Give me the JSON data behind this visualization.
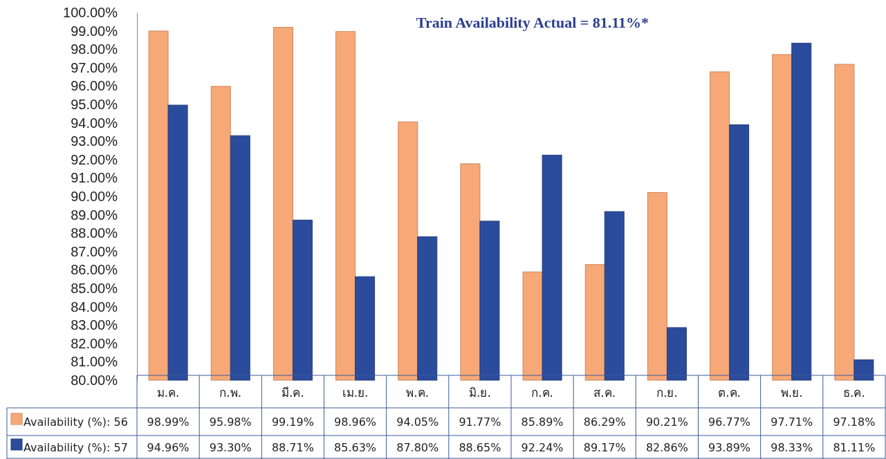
{
  "chart_data": {
    "type": "bar",
    "title": "Train Availability Actual = 81.11%*",
    "categories": [
      "ม.ค.",
      "ก.พ.",
      "มี.ค.",
      "เม.ย.",
      "พ.ค.",
      "มิ.ย.",
      "ก.ค.",
      "ส.ค.",
      "ก.ย.",
      "ต.ค.",
      "พ.ย.",
      "ธ.ค."
    ],
    "series": [
      {
        "name": "Availability (%): 56",
        "color": "#f7a877",
        "values": [
          98.99,
          95.98,
          99.19,
          98.96,
          94.05,
          91.77,
          85.89,
          86.29,
          90.21,
          96.77,
          97.71,
          97.18
        ],
        "value_labels": [
          "98.99%",
          "95.98%",
          "99.19%",
          "98.96%",
          "94.05%",
          "91.77%",
          "85.89%",
          "86.29%",
          "90.21%",
          "96.77%",
          "97.71%",
          "97.18%"
        ]
      },
      {
        "name": "Availability (%): 57",
        "color": "#2b4c9c",
        "values": [
          94.96,
          93.3,
          88.71,
          85.63,
          87.8,
          88.65,
          92.24,
          89.17,
          82.86,
          93.89,
          98.33,
          81.11
        ],
        "value_labels": [
          "94.96%",
          "93.30%",
          "88.71%",
          "85.63%",
          "87.80%",
          "88.65%",
          "92.24%",
          "89.17%",
          "82.86%",
          "93.89%",
          "98.33%",
          "81.11%"
        ]
      }
    ],
    "ylim": [
      80,
      100
    ],
    "yticks": [
      {
        "value": 80,
        "label": "80.00%"
      },
      {
        "value": 81,
        "label": "81.00%"
      },
      {
        "value": 82,
        "label": "82.00%"
      },
      {
        "value": 83,
        "label": "83.00%"
      },
      {
        "value": 84,
        "label": "84.00%"
      },
      {
        "value": 85,
        "label": "85.00%"
      },
      {
        "value": 86,
        "label": "86.00%"
      },
      {
        "value": 87,
        "label": "87.00%"
      },
      {
        "value": 88,
        "label": "88.00%"
      },
      {
        "value": 89,
        "label": "89.00%"
      },
      {
        "value": 90,
        "label": "90.00%"
      },
      {
        "value": 91,
        "label": "91.00%"
      },
      {
        "value": 92,
        "label": "92.00%"
      },
      {
        "value": 93,
        "label": "93.00%"
      },
      {
        "value": 94,
        "label": "94.00%"
      },
      {
        "value": 95,
        "label": "95.00%"
      },
      {
        "value": 96,
        "label": "96.00%"
      },
      {
        "value": 97,
        "label": "97.00%"
      },
      {
        "value": 98,
        "label": "98.00%"
      },
      {
        "value": 99,
        "label": "99.00%"
      },
      {
        "value": 100,
        "label": "100.00%"
      }
    ],
    "grid": false,
    "legend": "bottom"
  }
}
